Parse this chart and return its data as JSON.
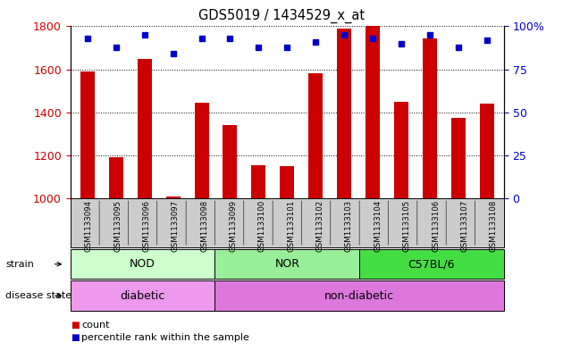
{
  "title": "GDS5019 / 1434529_x_at",
  "samples": [
    "GSM1133094",
    "GSM1133095",
    "GSM1133096",
    "GSM1133097",
    "GSM1133098",
    "GSM1133099",
    "GSM1133100",
    "GSM1133101",
    "GSM1133102",
    "GSM1133103",
    "GSM1133104",
    "GSM1133105",
    "GSM1133106",
    "GSM1133107",
    "GSM1133108"
  ],
  "counts": [
    1590,
    1190,
    1650,
    1010,
    1445,
    1340,
    1155,
    1150,
    1580,
    1790,
    1800,
    1450,
    1745,
    1375,
    1440
  ],
  "percentiles": [
    93,
    88,
    95,
    84,
    93,
    93,
    88,
    88,
    91,
    95,
    93,
    90,
    95,
    88,
    92
  ],
  "ylim_left": [
    1000,
    1800
  ],
  "ylim_right": [
    0,
    100
  ],
  "yticks_left": [
    1000,
    1200,
    1400,
    1600,
    1800
  ],
  "yticks_right": [
    0,
    25,
    50,
    75,
    100
  ],
  "bar_color": "#cc0000",
  "dot_color": "#0000cc",
  "bar_width": 0.5,
  "strain_groups": [
    {
      "label": "NOD",
      "start": 0,
      "end": 4,
      "color": "#ccffcc"
    },
    {
      "label": "NOR",
      "start": 5,
      "end": 9,
      "color": "#99ee99"
    },
    {
      "label": "C57BL/6",
      "start": 10,
      "end": 14,
      "color": "#44dd44"
    }
  ],
  "disease_groups": [
    {
      "label": "diabetic",
      "start": 0,
      "end": 4,
      "color": "#ee99ee"
    },
    {
      "label": "non-diabetic",
      "start": 5,
      "end": 14,
      "color": "#dd77dd"
    }
  ],
  "legend_items": [
    {
      "label": "count",
      "color": "#cc0000"
    },
    {
      "label": "percentile rank within the sample",
      "color": "#0000cc"
    }
  ],
  "bg_color": "#ffffff",
  "tick_color_left": "#cc0000",
  "tick_color_right": "#0000cc",
  "xtick_bg": "#cccccc"
}
